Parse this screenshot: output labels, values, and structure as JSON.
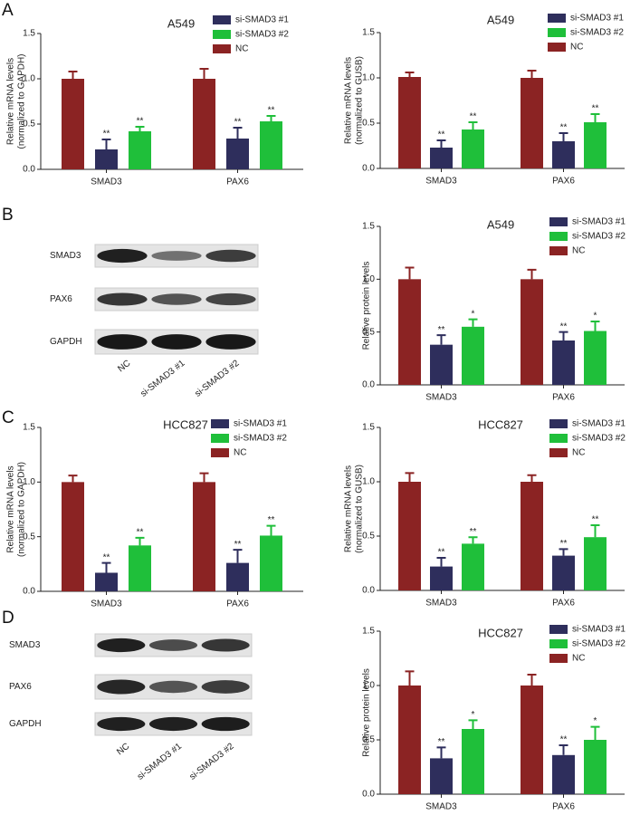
{
  "panels": [
    "A",
    "B",
    "C",
    "D"
  ],
  "blots": [
    {
      "rows": [
        "SMAD3",
        "PAX6",
        "GAPDH"
      ],
      "lanes": [
        "NC",
        "si-SMAD3 #1",
        "si-SMAD3 #2"
      ]
    },
    {
      "rows": [
        "SMAD3",
        "PAX6",
        "GAPDH"
      ],
      "lanes": [
        "NC",
        "si-SMAD3 #1",
        "si-SMAD3 #2"
      ]
    }
  ],
  "chart_data": [
    {
      "type": "bar",
      "title": "A549",
      "y_label": [
        "Relative mRNA  levels",
        "(normalized to GAPDH)"
      ],
      "categories": [
        "SMAD3",
        "PAX6"
      ],
      "series": [
        {
          "name": "si-SMAD3 #1",
          "color": "#2e2e5c",
          "values": [
            0.22,
            0.34
          ],
          "errors": [
            0.11,
            0.12
          ],
          "annotations": [
            "**",
            "**"
          ]
        },
        {
          "name": "si-SMAD3 #2",
          "color": "#1fbf3a",
          "values": [
            0.42,
            0.53
          ],
          "errors": [
            0.05,
            0.06
          ],
          "annotations": [
            "**",
            "**"
          ]
        },
        {
          "name": "NC",
          "color": "#8b2323",
          "values": [
            1.0,
            1.0
          ],
          "errors": [
            0.08,
            0.11
          ]
        }
      ],
      "ylim": [
        0,
        1.5
      ],
      "yticks": [
        {
          "value": 0,
          "label": "0.0"
        },
        0.5,
        {
          "value": 1,
          "label": "1.0"
        },
        1.5
      ]
    },
    {
      "type": "bar",
      "title": "A549",
      "y_label": [
        "Relative mRNA  levels",
        "(normalized to GUSB)"
      ],
      "categories": [
        "SMAD3",
        "PAX6"
      ],
      "series": [
        {
          "name": "si-SMAD3 #1",
          "color": "#2e2e5c",
          "values": [
            0.23,
            0.3
          ],
          "errors": [
            0.08,
            0.09
          ],
          "annotations": [
            "**",
            "**"
          ]
        },
        {
          "name": "si-SMAD3 #2",
          "color": "#1fbf3a",
          "values": [
            0.43,
            0.51
          ],
          "errors": [
            0.08,
            0.09
          ],
          "annotations": [
            "**",
            "**"
          ]
        },
        {
          "name": "NC",
          "color": "#8b2323",
          "values": [
            1.01,
            1.0
          ],
          "errors": [
            0.05,
            0.08
          ]
        }
      ],
      "ylim": [
        0,
        1.5
      ],
      "yticks": [
        {
          "value": 0,
          "label": "0.0"
        },
        0.5,
        {
          "value": 1,
          "label": "1.0"
        },
        1.5
      ]
    },
    {
      "type": "bar",
      "title": "A549",
      "y_label": [
        "Relative protein levels"
      ],
      "categories": [
        "SMAD3",
        "PAX6"
      ],
      "series": [
        {
          "name": "si-SMAD3 #1",
          "color": "#2e2e5c",
          "values": [
            0.38,
            0.42
          ],
          "errors": [
            0.09,
            0.08
          ],
          "annotations": [
            "**",
            "**"
          ]
        },
        {
          "name": "si-SMAD3 #2",
          "color": "#1fbf3a",
          "values": [
            0.55,
            0.51
          ],
          "errors": [
            0.07,
            0.09
          ],
          "annotations": [
            "*",
            "*"
          ]
        },
        {
          "name": "NC",
          "color": "#8b2323",
          "values": [
            1.0,
            1.0
          ],
          "errors": [
            0.11,
            0.09
          ]
        }
      ],
      "ylim": [
        0,
        1.5
      ],
      "yticks": [
        {
          "value": 0,
          "label": "0.0"
        },
        0.5,
        {
          "value": 1,
          "label": "1.0"
        },
        1.5
      ]
    },
    {
      "type": "bar",
      "title": "HCC827",
      "y_label": [
        "Relative mRNA  levels",
        "(normalized to GAPDH)"
      ],
      "categories": [
        "SMAD3",
        "PAX6"
      ],
      "series": [
        {
          "name": "si-SMAD3 #1",
          "color": "#2e2e5c",
          "values": [
            0.17,
            0.26
          ],
          "errors": [
            0.09,
            0.12
          ],
          "annotations": [
            "**",
            "**"
          ]
        },
        {
          "name": "si-SMAD3 #2",
          "color": "#1fbf3a",
          "values": [
            0.42,
            0.51
          ],
          "errors": [
            0.07,
            0.09
          ],
          "annotations": [
            "**",
            "**"
          ]
        },
        {
          "name": "NC",
          "color": "#8b2323",
          "values": [
            1.0,
            1.0
          ],
          "errors": [
            0.06,
            0.08
          ]
        }
      ],
      "ylim": [
        0,
        1.5
      ],
      "yticks": [
        {
          "value": 0,
          "label": "0.0"
        },
        0.5,
        {
          "value": 1,
          "label": "1.0"
        },
        1.5
      ]
    },
    {
      "type": "bar",
      "title": "HCC827",
      "y_label": [
        "Relative mRNA  levels",
        "(normalized to GUSB)"
      ],
      "categories": [
        "SMAD3",
        "PAX6"
      ],
      "series": [
        {
          "name": "si-SMAD3 #1",
          "color": "#2e2e5c",
          "values": [
            0.22,
            0.32
          ],
          "errors": [
            0.08,
            0.06
          ],
          "annotations": [
            "**",
            "**"
          ]
        },
        {
          "name": "si-SMAD3 #2",
          "color": "#1fbf3a",
          "values": [
            0.43,
            0.49
          ],
          "errors": [
            0.06,
            0.11
          ],
          "annotations": [
            "**",
            "**"
          ]
        },
        {
          "name": "NC",
          "color": "#8b2323",
          "values": [
            1.0,
            1.0
          ],
          "errors": [
            0.08,
            0.06
          ]
        }
      ],
      "ylim": [
        0,
        1.5
      ],
      "yticks": [
        {
          "value": 0,
          "label": "0.0"
        },
        0.5,
        {
          "value": 1,
          "label": "1.0"
        },
        1.5
      ]
    },
    {
      "type": "bar",
      "title": "HCC827",
      "y_label": [
        "Relative protein levels"
      ],
      "categories": [
        "SMAD3",
        "PAX6"
      ],
      "series": [
        {
          "name": "si-SMAD3 #1",
          "color": "#2e2e5c",
          "values": [
            0.33,
            0.36
          ],
          "errors": [
            0.1,
            0.09
          ],
          "annotations": [
            "**",
            "**"
          ]
        },
        {
          "name": "si-SMAD3 #2",
          "color": "#1fbf3a",
          "values": [
            0.6,
            0.5
          ],
          "errors": [
            0.08,
            0.12
          ],
          "annotations": [
            "*",
            "*"
          ]
        },
        {
          "name": "NC",
          "color": "#8b2323",
          "values": [
            1.0,
            1.0
          ],
          "errors": [
            0.13,
            0.1
          ]
        }
      ],
      "ylim": [
        0,
        1.5
      ],
      "yticks": [
        {
          "value": 0,
          "label": "0.0"
        },
        0.5,
        {
          "value": 1,
          "label": "1.0"
        },
        1.5
      ]
    }
  ]
}
